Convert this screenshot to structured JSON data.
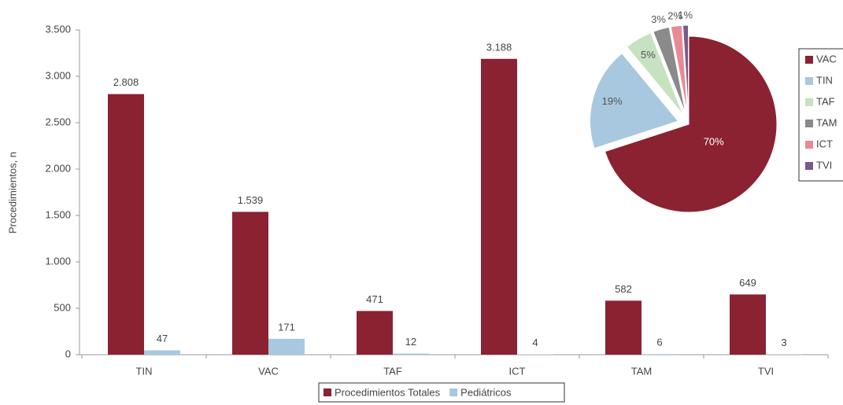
{
  "chart_data": [
    {
      "type": "bar",
      "y_label": "Procedimientos, n",
      "categories": [
        "TIN",
        "VAC",
        "TAF",
        "ICT",
        "TAM",
        "TVI"
      ],
      "series": [
        {
          "name": "Procedimientos Totales",
          "color": "#8b2232",
          "values": [
            2808,
            1539,
            471,
            3188,
            582,
            649
          ],
          "value_labels": [
            "2.808",
            "1.539",
            "471",
            "3.188",
            "582",
            "649"
          ]
        },
        {
          "name": "Pediátricos",
          "color": "#a8c8e0",
          "values": [
            47,
            171,
            12,
            4,
            6,
            3
          ]
        }
      ],
      "ylim": [
        0,
        3500
      ],
      "yticks": [
        0,
        500,
        {
          "value": 1000,
          "label": "1.000"
        },
        {
          "value": 1500,
          "label": "1.500"
        },
        {
          "value": 2000,
          "label": "2.000"
        },
        {
          "value": 2500,
          "label": "2.500"
        },
        {
          "value": 3000,
          "label": "3.000"
        },
        {
          "value": 3500,
          "label": "3.500"
        }
      ],
      "legend": "bottom"
    },
    {
      "type": "pie",
      "categories": [
        "VAC",
        "TIN",
        "TAF",
        "TAM",
        "ICT",
        "TVI"
      ],
      "values": [
        70,
        19,
        5,
        3,
        2,
        1
      ],
      "value_labels": [
        "70%",
        "19%",
        "5%",
        "3%",
        "2%",
        "1%"
      ],
      "colors": [
        "#8b2232",
        "#a8c8e0",
        "#c6e2c0",
        "#8a8a8a",
        "#e88a94",
        "#7a5a8a"
      ],
      "legend": "right"
    }
  ]
}
